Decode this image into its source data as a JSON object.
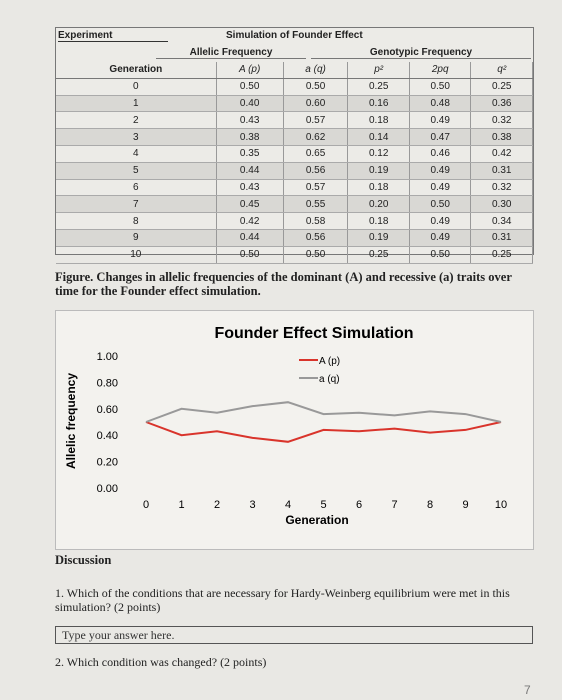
{
  "table": {
    "header": {
      "experiment": "Experiment",
      "title": "Simulation of Founder Effect"
    },
    "groups": [
      "Allelic Frequency",
      "Genotypic Frequency"
    ],
    "columns": [
      "Generation",
      "A (p)",
      "a (q)",
      "p²",
      "2pq",
      "q²"
    ],
    "rows": [
      [
        "0",
        "0.50",
        "0.50",
        "0.25",
        "0.50",
        "0.25"
      ],
      [
        "1",
        "0.40",
        "0.60",
        "0.16",
        "0.48",
        "0.36"
      ],
      [
        "2",
        "0.43",
        "0.57",
        "0.18",
        "0.49",
        "0.32"
      ],
      [
        "3",
        "0.38",
        "0.62",
        "0.14",
        "0.47",
        "0.38"
      ],
      [
        "4",
        "0.35",
        "0.65",
        "0.12",
        "0.46",
        "0.42"
      ],
      [
        "5",
        "0.44",
        "0.56",
        "0.19",
        "0.49",
        "0.31"
      ],
      [
        "6",
        "0.43",
        "0.57",
        "0.18",
        "0.49",
        "0.32"
      ],
      [
        "7",
        "0.45",
        "0.55",
        "0.20",
        "0.50",
        "0.30"
      ],
      [
        "8",
        "0.42",
        "0.58",
        "0.18",
        "0.49",
        "0.34"
      ],
      [
        "9",
        "0.44",
        "0.56",
        "0.19",
        "0.49",
        "0.31"
      ],
      [
        "10",
        "0.50",
        "0.50",
        "0.25",
        "0.50",
        "0.25"
      ]
    ]
  },
  "caption": "Figure. Changes in allelic frequencies of the dominant (A) and recessive (a) traits over time for the Founder effect simulation.",
  "chart_data": {
    "type": "line",
    "title": "Founder Effect Simulation",
    "x_label": "Generation",
    "y_label": "Allelic frequency",
    "x": [
      0,
      1,
      2,
      3,
      4,
      5,
      6,
      7,
      8,
      9,
      10
    ],
    "series": [
      {
        "name": "A (p)",
        "color": "#d9342b",
        "values": [
          0.5,
          0.4,
          0.43,
          0.38,
          0.35,
          0.44,
          0.43,
          0.45,
          0.42,
          0.44,
          0.5
        ]
      },
      {
        "name": "a (q)",
        "color": "#999999",
        "values": [
          0.5,
          0.6,
          0.57,
          0.62,
          0.65,
          0.56,
          0.57,
          0.55,
          0.58,
          0.56,
          0.5
        ]
      }
    ],
    "xlim": [
      0,
      10
    ],
    "xticks": [
      0,
      1,
      2,
      3,
      4,
      5,
      6,
      7,
      8,
      9,
      10
    ],
    "ylim": [
      0,
      1
    ],
    "yticks": [
      {
        "value": 0,
        "label": "0.00"
      },
      {
        "value": 0.2,
        "label": "0.20"
      },
      {
        "value": 0.4,
        "label": "0.40"
      },
      {
        "value": 0.6,
        "label": "0.60"
      },
      {
        "value": 0.8,
        "label": "0.80"
      },
      {
        "value": 1,
        "label": "1.00"
      }
    ],
    "legend": "upper-right",
    "grid": false
  },
  "discussion": {
    "heading": "Discussion",
    "q1": "1. Which of the conditions that are necessary for Hardy-Weinberg equilibrium were met in this simulation? (2 points)",
    "answer": "Type your answer here.",
    "q2": "2. Which condition was changed? (2 points)"
  },
  "page_number": "7"
}
